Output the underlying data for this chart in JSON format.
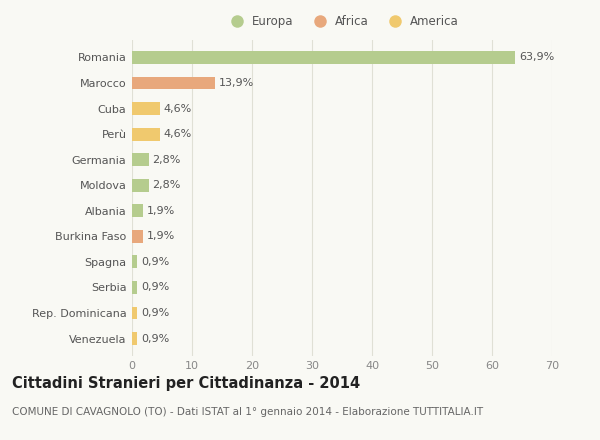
{
  "categories": [
    "Romania",
    "Marocco",
    "Cuba",
    "Perù",
    "Germania",
    "Moldova",
    "Albania",
    "Burkina Faso",
    "Spagna",
    "Serbia",
    "Rep. Dominicana",
    "Venezuela"
  ],
  "values": [
    63.9,
    13.9,
    4.6,
    4.6,
    2.8,
    2.8,
    1.9,
    1.9,
    0.9,
    0.9,
    0.9,
    0.9
  ],
  "labels": [
    "63,9%",
    "13,9%",
    "4,6%",
    "4,6%",
    "2,8%",
    "2,8%",
    "1,9%",
    "1,9%",
    "0,9%",
    "0,9%",
    "0,9%",
    "0,9%"
  ],
  "continents": [
    "Europa",
    "Africa",
    "America",
    "America",
    "Europa",
    "Europa",
    "Europa",
    "Africa",
    "Europa",
    "Europa",
    "America",
    "America"
  ],
  "colors": {
    "Europa": "#b5cc8e",
    "Africa": "#e8a87c",
    "America": "#f0c96e"
  },
  "legend_items": [
    "Europa",
    "Africa",
    "America"
  ],
  "legend_colors": [
    "#b5cc8e",
    "#e8a87c",
    "#f0c96e"
  ],
  "title": "Cittadini Stranieri per Cittadinanza - 2014",
  "subtitle": "COMUNE DI CAVAGNOLO (TO) - Dati ISTAT al 1° gennaio 2014 - Elaborazione TUTTITALIA.IT",
  "xlim": [
    0,
    70
  ],
  "xticks": [
    0,
    10,
    20,
    30,
    40,
    50,
    60,
    70
  ],
  "bg_color": "#f9f9f4",
  "grid_color": "#e0e0d5",
  "bar_height": 0.5,
  "title_fontsize": 10.5,
  "subtitle_fontsize": 7.5,
  "label_fontsize": 8,
  "tick_fontsize": 8,
  "legend_fontsize": 8.5
}
